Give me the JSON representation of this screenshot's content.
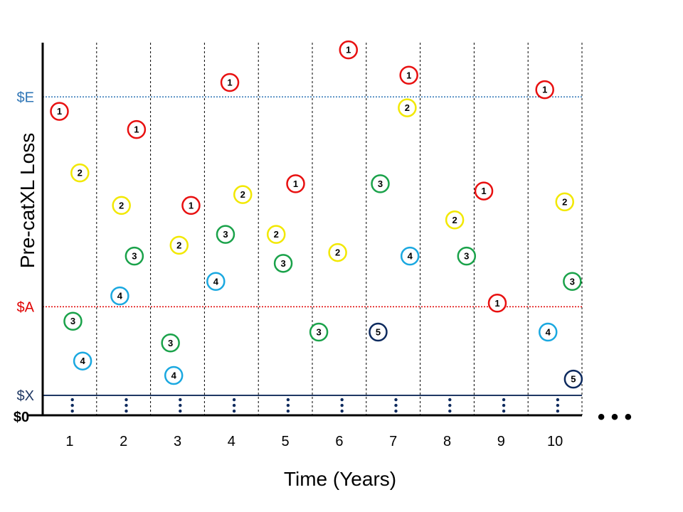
{
  "chart_data": {
    "type": "scatter",
    "xlabel": "Time (Years)",
    "ylabel": "Pre-catXL Loss",
    "x_ticks": [
      "1",
      "2",
      "3",
      "4",
      "5",
      "6",
      "7",
      "8",
      "9",
      "10"
    ],
    "continuation": "• • •",
    "levels": [
      {
        "label": "$E",
        "value": 0.88,
        "color": "#2e75b6",
        "style": "dotted"
      },
      {
        "label": "$A",
        "value": 0.3,
        "color": "#e00000",
        "style": "dotted"
      },
      {
        "label": "$X",
        "value": 0.055,
        "color": "#1f3864",
        "style": "solid"
      },
      {
        "label": "$0",
        "value": 0.0,
        "color": "#000000",
        "style": "axis"
      }
    ],
    "ylim": [
      0,
      1.03
    ],
    "xlim": [
      0.5,
      10.6
    ],
    "rank_colors": {
      "1": "#e81010",
      "2": "#f2e800",
      "3": "#1aa24a",
      "4": "#1aa8e0",
      "5": "#0d2a5e"
    },
    "points": [
      {
        "year": 1,
        "rank": "1",
        "pos": 0.31,
        "value": 0.84
      },
      {
        "year": 1,
        "rank": "2",
        "pos": 0.69,
        "value": 0.67
      },
      {
        "year": 1,
        "rank": "3",
        "pos": 0.56,
        "value": 0.26
      },
      {
        "year": 1,
        "rank": "4",
        "pos": 0.74,
        "value": 0.15
      },
      {
        "year": 2,
        "rank": "1",
        "pos": 0.74,
        "value": 0.79
      },
      {
        "year": 2,
        "rank": "2",
        "pos": 0.46,
        "value": 0.58
      },
      {
        "year": 2,
        "rank": "3",
        "pos": 0.7,
        "value": 0.44
      },
      {
        "year": 2,
        "rank": "4",
        "pos": 0.43,
        "value": 0.33
      },
      {
        "year": 3,
        "rank": "1",
        "pos": 0.75,
        "value": 0.58
      },
      {
        "year": 3,
        "rank": "2",
        "pos": 0.53,
        "value": 0.47
      },
      {
        "year": 3,
        "rank": "3",
        "pos": 0.37,
        "value": 0.2
      },
      {
        "year": 3,
        "rank": "4",
        "pos": 0.43,
        "value": 0.11
      },
      {
        "year": 4,
        "rank": "1",
        "pos": 0.47,
        "value": 0.92
      },
      {
        "year": 4,
        "rank": "2",
        "pos": 0.71,
        "value": 0.61
      },
      {
        "year": 4,
        "rank": "3",
        "pos": 0.39,
        "value": 0.5
      },
      {
        "year": 4,
        "rank": "4",
        "pos": 0.21,
        "value": 0.37
      },
      {
        "year": 5,
        "rank": "1",
        "pos": 0.69,
        "value": 0.64
      },
      {
        "year": 5,
        "rank": "2",
        "pos": 0.33,
        "value": 0.5
      },
      {
        "year": 5,
        "rank": "3",
        "pos": 0.46,
        "value": 0.42
      },
      {
        "year": 6,
        "rank": "1",
        "pos": 0.67,
        "value": 1.01
      },
      {
        "year": 6,
        "rank": "2",
        "pos": 0.47,
        "value": 0.45
      },
      {
        "year": 6,
        "rank": "3",
        "pos": 0.12,
        "value": 0.23
      },
      {
        "year": 7,
        "rank": "1",
        "pos": 0.79,
        "value": 0.94
      },
      {
        "year": 7,
        "rank": "2",
        "pos": 0.76,
        "value": 0.85
      },
      {
        "year": 7,
        "rank": "3",
        "pos": 0.26,
        "value": 0.64
      },
      {
        "year": 7,
        "rank": "4",
        "pos": 0.81,
        "value": 0.44
      },
      {
        "year": 7,
        "rank": "5",
        "pos": 0.22,
        "value": 0.23
      },
      {
        "year": 8,
        "rank": "1",
        "pos": 1.18,
        "value": 0.62
      },
      {
        "year": 8,
        "rank": "2",
        "pos": 0.64,
        "value": 0.54
      },
      {
        "year": 8,
        "rank": "3",
        "pos": 0.86,
        "value": 0.44
      },
      {
        "year": 9,
        "rank": "1",
        "pos": 0.43,
        "value": 0.31
      },
      {
        "year": 10,
        "rank": "1",
        "pos": 0.31,
        "value": 0.9
      },
      {
        "year": 10,
        "rank": "2",
        "pos": 0.68,
        "value": 0.59
      },
      {
        "year": 10,
        "rank": "3",
        "pos": 0.82,
        "value": 0.37
      },
      {
        "year": 10,
        "rank": "4",
        "pos": 0.37,
        "value": 0.23
      },
      {
        "year": 10,
        "rank": "5",
        "pos": 0.84,
        "value": 0.1
      }
    ]
  }
}
